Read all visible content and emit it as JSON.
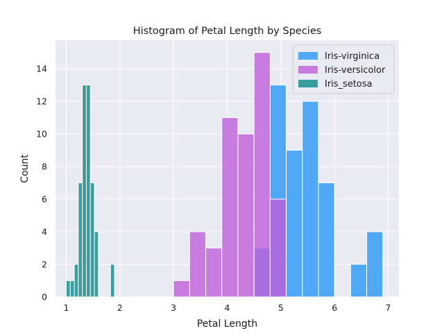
{
  "chart_data": {
    "type": "histogram",
    "title": "Histogram of Petal Length by Species",
    "xlabel": "Petal Length",
    "ylabel": "Count",
    "xlim": [
      0.8,
      7.2
    ],
    "ylim": [
      0,
      15.75
    ],
    "xticks": [
      1,
      2,
      3,
      4,
      5,
      6,
      7
    ],
    "yticks": [
      0,
      2,
      4,
      6,
      8,
      10,
      12,
      14
    ],
    "grid": true,
    "legend_position": "top-right",
    "series": [
      {
        "name": "Iris-virginica",
        "color": "#2996f5",
        "opacity": 0.8,
        "bin_edges": [
          4.5,
          4.8,
          5.1,
          5.4,
          5.7,
          6.0,
          6.3,
          6.6,
          6.9
        ],
        "counts": [
          3,
          13,
          9,
          12,
          7,
          0,
          2,
          4
        ]
      },
      {
        "name": "Iris-versicolor",
        "color": "#bf5fd9",
        "opacity": 0.8,
        "bin_edges": [
          3.0,
          3.3,
          3.6,
          3.9,
          4.2,
          4.5,
          4.8,
          5.1
        ],
        "counts": [
          1,
          4,
          3,
          11,
          10,
          15,
          6
        ]
      },
      {
        "name": "Iris_setosa",
        "color": "#1a9090",
        "opacity": 0.85,
        "bin_edges": [
          1.0,
          1.075,
          1.15,
          1.225,
          1.3,
          1.375,
          1.45,
          1.525,
          1.6,
          1.675,
          1.75,
          1.825,
          1.9
        ],
        "counts": [
          1,
          1,
          2,
          7,
          13,
          13,
          7,
          4,
          0,
          0,
          0,
          2
        ]
      }
    ]
  }
}
